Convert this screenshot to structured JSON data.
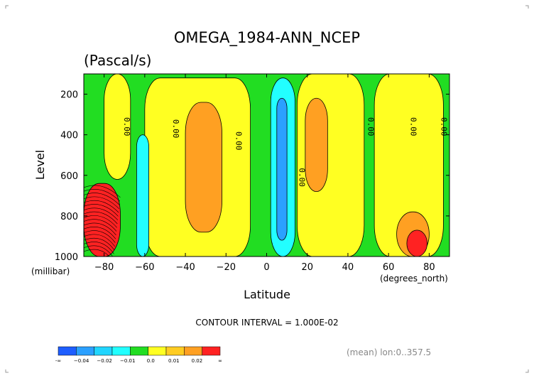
{
  "chart_data": {
    "type": "heatmap",
    "title": "OMEGA_1984-ANN_NCEP",
    "subtitle": "(Pascal/s)",
    "xlabel": "Latitude",
    "ylabel": "Level",
    "x_units": "(degrees_north)",
    "y_units": "(millibar)",
    "xlim": [
      -90,
      90
    ],
    "ylim": [
      1000,
      100
    ],
    "x_ticks": [
      -80,
      -60,
      -40,
      -20,
      0,
      20,
      40,
      60,
      80
    ],
    "y_ticks": [
      200,
      400,
      600,
      800,
      1000
    ],
    "grid": false,
    "contour_interval_text": "CONTOUR INTERVAL = 1.000E-02",
    "footnote": "(mean) lon:0..357.5",
    "contour_labels": [
      {
        "text": "0.00",
        "lat": -70,
        "level": 360
      },
      {
        "text": "0.00",
        "lat": -46,
        "level": 370
      },
      {
        "text": "0.00",
        "lat": -15,
        "level": 430
      },
      {
        "text": "0.00",
        "lat": 16,
        "level": 610
      },
      {
        "text": "0.00",
        "lat": 50,
        "level": 360
      },
      {
        "text": "0.00",
        "lat": 71,
        "level": 360
      },
      {
        "text": "0.00",
        "lat": 86,
        "level": 360
      }
    ],
    "colorbar": {
      "labels": [
        "-∞",
        "−0.04",
        "−0.02",
        "−0.01",
        "0.0",
        "0.01",
        "0.02",
        "∞"
      ],
      "colors": [
        "#1e5eff",
        "#2ba0ff",
        "#21d5ff",
        "#22ffff",
        "#22dd22",
        "#ffff22",
        "#ffcc22",
        "#ffa022",
        "#ff2222"
      ]
    },
    "regions": [
      {
        "value": "0.00 to 0.01",
        "color": "#ffff22",
        "lat": [
          -80,
          -67
        ],
        "level": [
          100,
          620
        ]
      },
      {
        "value": "0.00 to 0.01",
        "color": "#ffff22",
        "lat": [
          -60,
          -8
        ],
        "level": [
          120,
          1000
        ]
      },
      {
        "value": "0.01 to 0.02",
        "color": "#ffa022",
        "lat": [
          -40,
          -22
        ],
        "level": [
          240,
          880
        ]
      },
      {
        "value": "0.00 to 0.01",
        "color": "#ffff22",
        "lat": [
          15,
          48
        ],
        "level": [
          100,
          1000
        ]
      },
      {
        "value": "0.01 to 0.02",
        "color": "#ffa022",
        "lat": [
          19,
          30
        ],
        "level": [
          220,
          680
        ]
      },
      {
        "value": "0.00 to 0.01",
        "color": "#ffff22",
        "lat": [
          53,
          87
        ],
        "level": [
          100,
          1000
        ]
      },
      {
        "value": "0.01 to 0.02",
        "color": "#ffa022",
        "lat": [
          64,
          80
        ],
        "level": [
          780,
          1000
        ]
      },
      {
        "value": ">0.02",
        "color": "#ff2222",
        "lat": [
          -90,
          -72
        ],
        "level": [
          640,
          1000
        ]
      },
      {
        "value": ">0.02",
        "color": "#ff2222",
        "lat": [
          69,
          79
        ],
        "level": [
          870,
          1000
        ]
      },
      {
        "value": "-0.01 to 0.00",
        "color": "#22ffff",
        "lat": [
          -64,
          -58
        ],
        "level": [
          400,
          1000
        ]
      },
      {
        "value": "-0.01 to 0.00",
        "color": "#22ffff",
        "lat": [
          2,
          14
        ],
        "level": [
          120,
          1000
        ]
      },
      {
        "value": "-0.02 to -0.01",
        "color": "#2ba0ff",
        "lat": [
          5,
          10
        ],
        "level": [
          220,
          920
        ]
      }
    ]
  }
}
